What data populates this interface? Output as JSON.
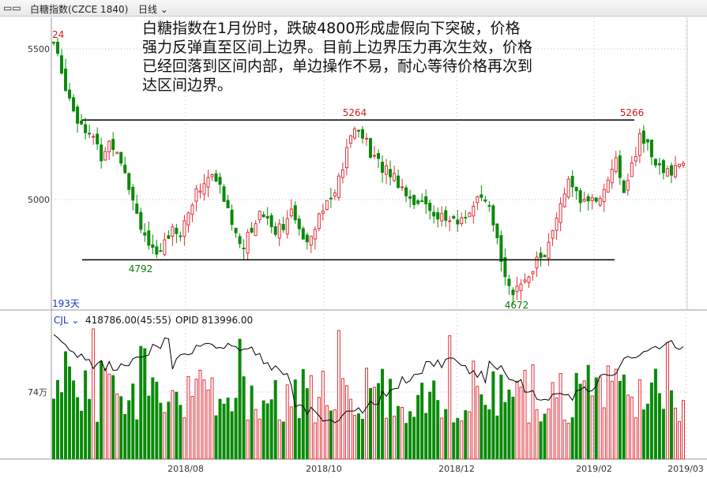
{
  "header": {
    "symbol_title": "白糖指数(CZCE 1840)",
    "period": "日线"
  },
  "annotation": [
    "白糖指数在1月份时，跌破4800形成虚假向下突破，价格",
    "强力反弹直至区间上边界。目前上边界压力再次生效，价格",
    "已经回落到区间内部，单边操作不易，耐心等待价格再次到",
    "达区间边界。"
  ],
  "price_panel": {
    "y_ticks": [
      "5500",
      "5000"
    ],
    "days_label": "193天",
    "labels": {
      "left_high": "24",
      "low_1": "4792",
      "high_1": "5264",
      "low_2": "4672",
      "high_2": "5266"
    },
    "range_upper": 5264,
    "range_lower": 4800
  },
  "volume_panel": {
    "indicator": "CJL",
    "volume_value": "418786.00(45:55)",
    "opi_value": "OPID 813996.00",
    "y_tick": "74万"
  },
  "x_ticks": [
    "2018/08",
    "2018/10",
    "2018/12",
    "2019/02",
    "2019/03"
  ],
  "colors": {
    "up": "#e0303a",
    "down": "#0a8a0a",
    "level_line": "#000000",
    "grid": "#bfbfbf",
    "high_label": "#d01c1c",
    "low_label": "#0a7a0a",
    "axis_text": "#333333",
    "days_text": "#1a35c8"
  },
  "chart_data": {
    "type": "candlestick",
    "price_axis_ticks": [
      5000,
      5500
    ],
    "key_points": [
      {
        "label": "24",
        "kind": "high"
      },
      {
        "label": "4792",
        "value": 4792,
        "kind": "low"
      },
      {
        "label": "5264",
        "value": 5264,
        "kind": "high"
      },
      {
        "label": "4672",
        "value": 4672,
        "kind": "low"
      },
      {
        "label": "5266",
        "value": 5266,
        "kind": "high"
      }
    ],
    "horizontal_levels": [
      5264,
      4800
    ],
    "close_path": [
      [
        0,
        5520
      ],
      [
        4,
        5420
      ],
      [
        8,
        5340
      ],
      [
        12,
        5270
      ],
      [
        16,
        5240
      ],
      [
        20,
        5200
      ],
      [
        24,
        5140
      ],
      [
        28,
        5190
      ],
      [
        32,
        5170
      ],
      [
        36,
        5100
      ],
      [
        40,
        5000
      ],
      [
        44,
        4920
      ],
      [
        48,
        4850
      ],
      [
        52,
        4800
      ],
      [
        56,
        4860
      ],
      [
        60,
        4920
      ],
      [
        64,
        4880
      ],
      [
        68,
        4960
      ],
      [
        72,
        5020
      ],
      [
        76,
        5060
      ],
      [
        80,
        5080
      ],
      [
        84,
        5040
      ],
      [
        88,
        4960
      ],
      [
        92,
        4890
      ],
      [
        96,
        4850
      ],
      [
        100,
        4900
      ],
      [
        104,
        4960
      ],
      [
        108,
        4940
      ],
      [
        112,
        4900
      ],
      [
        116,
        4920
      ],
      [
        120,
        4950
      ],
      [
        124,
        4900
      ],
      [
        128,
        4870
      ],
      [
        132,
        4920
      ],
      [
        136,
        4980
      ],
      [
        140,
        5000
      ],
      [
        144,
        5060
      ],
      [
        148,
        5160
      ],
      [
        152,
        5240
      ],
      [
        156,
        5220
      ],
      [
        160,
        5150
      ],
      [
        164,
        5120
      ],
      [
        168,
        5100
      ],
      [
        172,
        5080
      ],
      [
        176,
        5040
      ],
      [
        180,
        5010
      ],
      [
        184,
        4990
      ],
      [
        188,
        4980
      ],
      [
        192,
        4960
      ],
      [
        196,
        4940
      ],
      [
        200,
        4930
      ],
      [
        204,
        4920
      ],
      [
        208,
        4950
      ],
      [
        212,
        4980
      ],
      [
        216,
        5000
      ],
      [
        220,
        4960
      ],
      [
        224,
        4860
      ],
      [
        228,
        4760
      ],
      [
        232,
        4690
      ],
      [
        236,
        4700
      ],
      [
        240,
        4760
      ],
      [
        244,
        4800
      ],
      [
        248,
        4820
      ],
      [
        252,
        4880
      ],
      [
        256,
        4990
      ],
      [
        260,
        5050
      ],
      [
        264,
        5010
      ],
      [
        268,
        4990
      ],
      [
        272,
        5010
      ],
      [
        276,
        5000
      ],
      [
        280,
        5080
      ],
      [
        284,
        5120
      ],
      [
        288,
        5040
      ],
      [
        292,
        5110
      ],
      [
        296,
        5200
      ],
      [
        300,
        5180
      ],
      [
        304,
        5130
      ],
      [
        308,
        5080
      ],
      [
        312,
        5100
      ],
      [
        316,
        5120
      ]
    ],
    "volume_axis_tick": "74万",
    "volume_indicator": "CJL",
    "open_interest_label": "OPID",
    "x_ticks": [
      "2018/08",
      "2018/10",
      "2018/12",
      "2019/02",
      "2019/03"
    ]
  }
}
